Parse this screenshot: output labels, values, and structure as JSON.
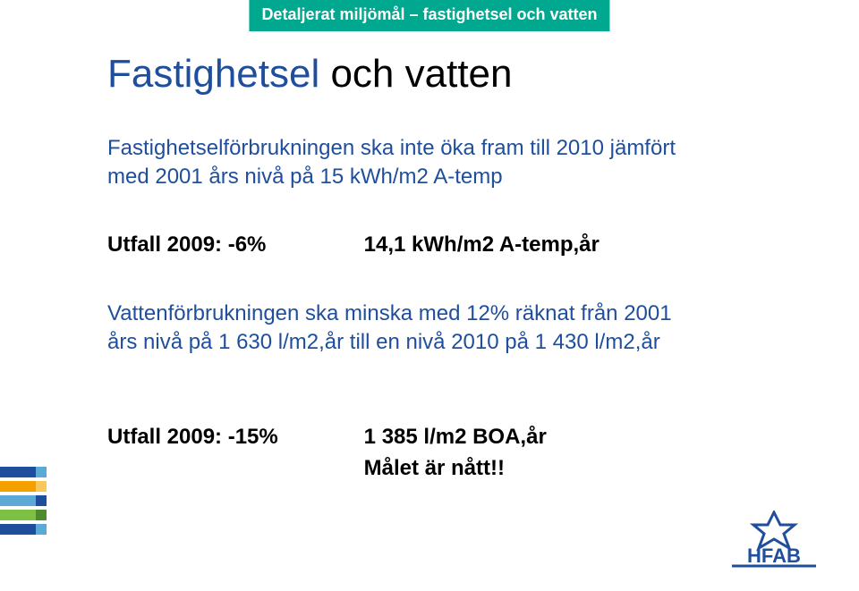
{
  "banner": {
    "text": "Detaljerat miljömål – fastighetsel och vatten",
    "bg": "#00a88f",
    "fg": "#ffffff"
  },
  "title": {
    "word1": "Fastighetsel",
    "word2": " och vatten"
  },
  "colors": {
    "accent_blue": "#1f4e9c"
  },
  "para1_line1": "Fastighetselförbrukningen ska inte öka fram till 2010 jämfört",
  "para1_line2": "med 2001 års nivå på 15 kWh/m2 A-temp",
  "row1_label": "Utfall 2009: -6%",
  "row1_value": "14,1 kWh/m2 A-temp,år",
  "para2_line1": "Vattenförbrukningen ska minska med 12% räknat från 2001",
  "para2_line2": "års nivå på 1 630 l/m2,år till en nivå 2010 på 1 430 l/m2,år",
  "row2_label": "Utfall 2009: -15%",
  "row2_value": "1 385 l/m2 BOA,år",
  "row3_value": "Målet är nått!!",
  "stripes": [
    {
      "seg1": "#1f4e9c",
      "seg2": "#5aa9d6"
    },
    {
      "seg1": "#f4a100",
      "seg2": "#f7c95c"
    },
    {
      "seg1": "#5aa9d6",
      "seg2": "#1f4e9c"
    },
    {
      "seg1": "#7cc144",
      "seg2": "#4f8a2e"
    },
    {
      "seg1": "#1f4e9c",
      "seg2": "#5aa9d6"
    }
  ],
  "logo": {
    "text": "HFAB",
    "color": "#1f4e9c"
  }
}
